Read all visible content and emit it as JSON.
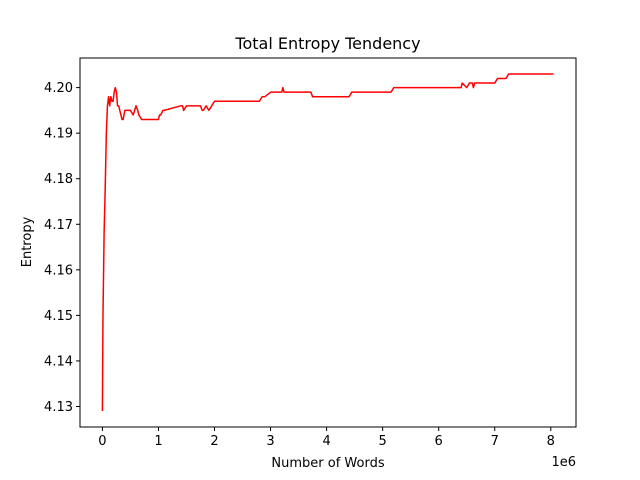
{
  "chart_data": {
    "type": "line",
    "title": "Total Entropy Tendency",
    "xlabel": "Number of Words",
    "ylabel": "Entropy",
    "x_offset_label": "1e6",
    "xlim": [
      -0.4,
      8.45
    ],
    "ylim": [
      4.1255,
      4.2065
    ],
    "x_ticks": [
      0,
      1,
      2,
      3,
      4,
      5,
      6,
      7,
      8
    ],
    "x_tick_labels": [
      "0",
      "1",
      "2",
      "3",
      "4",
      "5",
      "6",
      "7",
      "8"
    ],
    "y_ticks": [
      4.13,
      4.14,
      4.15,
      4.16,
      4.17,
      4.18,
      4.19,
      4.2
    ],
    "y_tick_labels": [
      "4.13",
      "4.14",
      "4.15",
      "4.16",
      "4.17",
      "4.18",
      "4.19",
      "4.20"
    ],
    "grid": false,
    "colors": {
      "line": "#ff0000",
      "axes": "#000000",
      "background": "#ffffff"
    },
    "series": [
      {
        "x": [
          0.0,
          0.01,
          0.03,
          0.05,
          0.07,
          0.09,
          0.11,
          0.13,
          0.15,
          0.17,
          0.19,
          0.21,
          0.23,
          0.25,
          0.27,
          0.29,
          0.31,
          0.33,
          0.35,
          0.37,
          0.4,
          0.43,
          0.46,
          0.5,
          0.55,
          0.6,
          0.63,
          0.65,
          0.7,
          0.75,
          0.8,
          1.0,
          1.02,
          1.04,
          1.08,
          1.1,
          1.4,
          1.43,
          1.45,
          1.5,
          1.52,
          1.75,
          1.78,
          1.8,
          1.85,
          1.9,
          1.95,
          2.0,
          2.05,
          2.1,
          2.8,
          2.85,
          2.9,
          3.0,
          3.2,
          3.22,
          3.24,
          3.3,
          3.72,
          3.75,
          4.4,
          4.45,
          5.15,
          5.2,
          6.2,
          6.4,
          6.42,
          6.5,
          6.55,
          6.6,
          6.62,
          6.64,
          7.0,
          7.05,
          7.2,
          7.25,
          8.05
        ],
        "y": [
          4.129,
          4.15,
          4.168,
          4.178,
          4.19,
          4.196,
          4.198,
          4.196,
          4.198,
          4.197,
          4.197,
          4.199,
          4.2,
          4.199,
          4.196,
          4.196,
          4.195,
          4.194,
          4.193,
          4.193,
          4.195,
          4.195,
          4.195,
          4.195,
          4.194,
          4.196,
          4.195,
          4.194,
          4.193,
          4.193,
          4.193,
          4.193,
          4.194,
          4.194,
          4.195,
          4.195,
          4.196,
          4.196,
          4.195,
          4.196,
          4.196,
          4.196,
          4.195,
          4.195,
          4.196,
          4.195,
          4.196,
          4.197,
          4.197,
          4.197,
          4.197,
          4.198,
          4.198,
          4.199,
          4.199,
          4.2,
          4.199,
          4.199,
          4.199,
          4.198,
          4.198,
          4.199,
          4.199,
          4.2,
          4.2,
          4.2,
          4.201,
          4.2,
          4.201,
          4.201,
          4.2,
          4.201,
          4.201,
          4.202,
          4.202,
          4.203,
          4.203
        ]
      }
    ]
  }
}
